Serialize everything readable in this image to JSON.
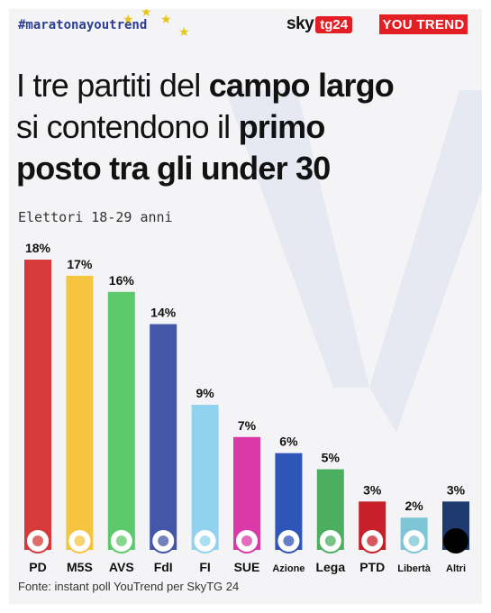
{
  "header": {
    "hashtag": "#maratonayoutrend",
    "sky_word": "sky",
    "tg_label": "tg24",
    "youtrend_label": "YOU TREND"
  },
  "title": {
    "part1": "I tre partiti del ",
    "part1_bold": "campo largo",
    "part2": "si contendono il ",
    "part2_bold": "primo",
    "part3_bold": "posto tra gli under 30"
  },
  "subtitle": "Elettori 18-29 anni",
  "source": "Fonte: instant poll YouTrend per SkyTG 24",
  "chart_data": {
    "type": "bar",
    "categories": [
      "PD",
      "M5S",
      "AVS",
      "FdI",
      "FI",
      "SUE",
      "Azione",
      "Lega",
      "PTD",
      "Libertà",
      "Altri"
    ],
    "values": [
      18,
      17,
      16,
      14,
      9,
      7,
      6,
      5,
      3,
      2,
      3
    ],
    "value_labels": [
      "18%",
      "17%",
      "16%",
      "14%",
      "9%",
      "7%",
      "6%",
      "5%",
      "3%",
      "2%",
      "3%"
    ],
    "colors": [
      "#d63a3a",
      "#f5c542",
      "#5cc96a",
      "#4356a8",
      "#8fd3ef",
      "#d93aa8",
      "#2f55b8",
      "#4caf60",
      "#c8202a",
      "#7cc6d6",
      "#1e3a6e"
    ],
    "ylim": [
      0,
      18
    ]
  },
  "icons": [
    "pd-logo-icon",
    "m5s-logo-icon",
    "avs-logo-icon",
    "fdi-logo-icon",
    "fi-logo-icon",
    "sue-logo-icon",
    "azione-logo-icon",
    "lega-logo-icon",
    "ptd-logo-icon",
    "liberta-logo-icon",
    "altri-dot-icon"
  ]
}
